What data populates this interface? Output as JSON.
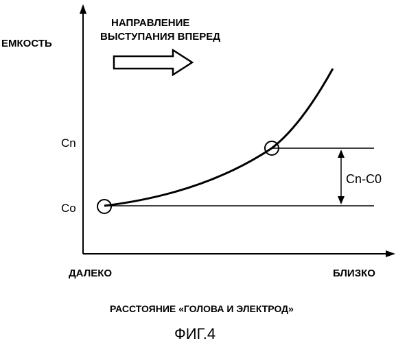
{
  "figure": {
    "y_axis_label": "ЕМКОСТЬ",
    "direction_label_line1": "НАПРАВЛЕНИЕ",
    "direction_label_line2": "ВЫСТУПАНИЯ ВПЕРЕД",
    "level_cn_label": "Cn",
    "level_co_label": "Co",
    "difference_label": "Cn-C0",
    "x_left_label": "ДАЛЕКО",
    "x_right_label": "БЛИЗКО",
    "x_axis_label": "РАССТОЯНИЕ «ГОЛОВА И ЭЛЕКТРОД»",
    "caption": "ФИГ.4"
  }
}
